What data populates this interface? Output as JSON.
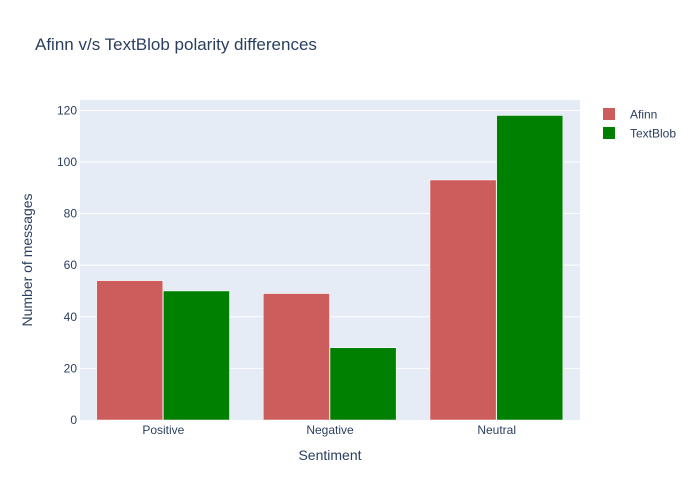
{
  "chart_data": {
    "type": "bar",
    "title": "Afinn v/s TextBlob polarity differences",
    "xlabel": "Sentiment",
    "ylabel": "Number of messages",
    "categories": [
      "Positive",
      "Negative",
      "Neutral"
    ],
    "series": [
      {
        "name": "Afinn",
        "color": "#cd5c5c",
        "values": [
          54,
          49,
          93
        ]
      },
      {
        "name": "TextBlob",
        "color": "#008000",
        "values": [
          50,
          28,
          118
        ]
      }
    ],
    "ylim": [
      0,
      124
    ],
    "yticks": [
      0,
      20,
      40,
      60,
      80,
      100,
      120
    ],
    "grid": true,
    "legend": "top-right",
    "plot_background": "#e5ecf6"
  }
}
